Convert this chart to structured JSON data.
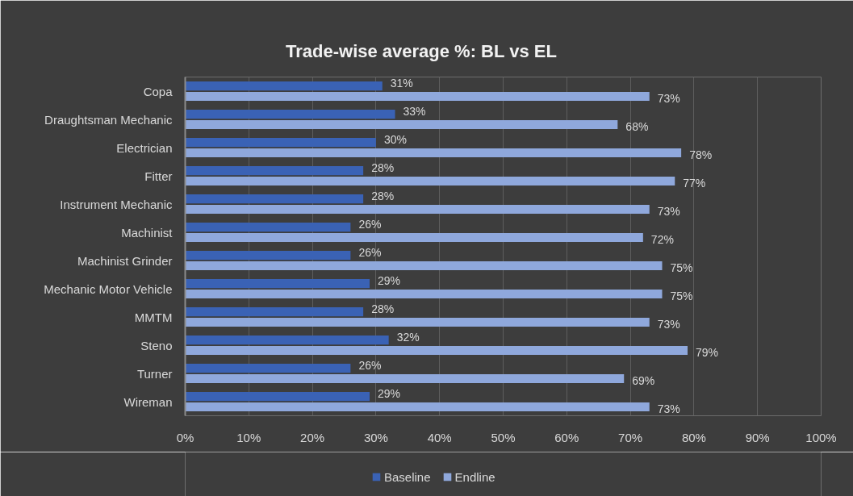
{
  "chart_data": {
    "type": "bar",
    "orientation": "horizontal",
    "title": "Trade-wise average %: BL vs EL",
    "categories": [
      "Copa",
      "Draughtsman Mechanic",
      "Electrician",
      "Fitter",
      "Instrument Mechanic",
      "Machinist",
      "Machinist Grinder",
      "Mechanic Motor Vehicle",
      "MMTM",
      "Steno",
      "Turner",
      "Wireman"
    ],
    "series": [
      {
        "name": "Baseline",
        "color": "#3a62b5",
        "values": [
          31,
          33,
          30,
          28,
          28,
          26,
          26,
          29,
          28,
          32,
          26,
          29
        ],
        "value_labels": [
          "31%",
          "33%",
          "30%",
          "28%",
          "28%",
          "26%",
          "26%",
          "29%",
          "28%",
          "32%",
          "26%",
          "29%"
        ]
      },
      {
        "name": "Endline",
        "color": "#8fa8dc",
        "values": [
          73,
          68,
          78,
          77,
          73,
          72,
          75,
          75,
          73,
          79,
          69,
          73
        ],
        "value_labels": [
          "73%",
          "68%",
          "78%",
          "77%",
          "73%",
          "72%",
          "75%",
          "75%",
          "73%",
          "79%",
          "69%",
          "73%"
        ]
      }
    ],
    "xlim": [
      0,
      100
    ],
    "xticks": [
      {
        "value": 0,
        "label": "0%"
      },
      {
        "value": 10,
        "label": "10%"
      },
      {
        "value": 20,
        "label": "20%"
      },
      {
        "value": 30,
        "label": "30%"
      },
      {
        "value": 40,
        "label": "40%"
      },
      {
        "value": 50,
        "label": "50%"
      },
      {
        "value": 60,
        "label": "60%"
      },
      {
        "value": 70,
        "label": "70%"
      },
      {
        "value": 80,
        "label": "80%"
      },
      {
        "value": 90,
        "label": "90%"
      },
      {
        "value": 100,
        "label": "100%"
      }
    ],
    "grid": "x",
    "legend": "bottom"
  }
}
